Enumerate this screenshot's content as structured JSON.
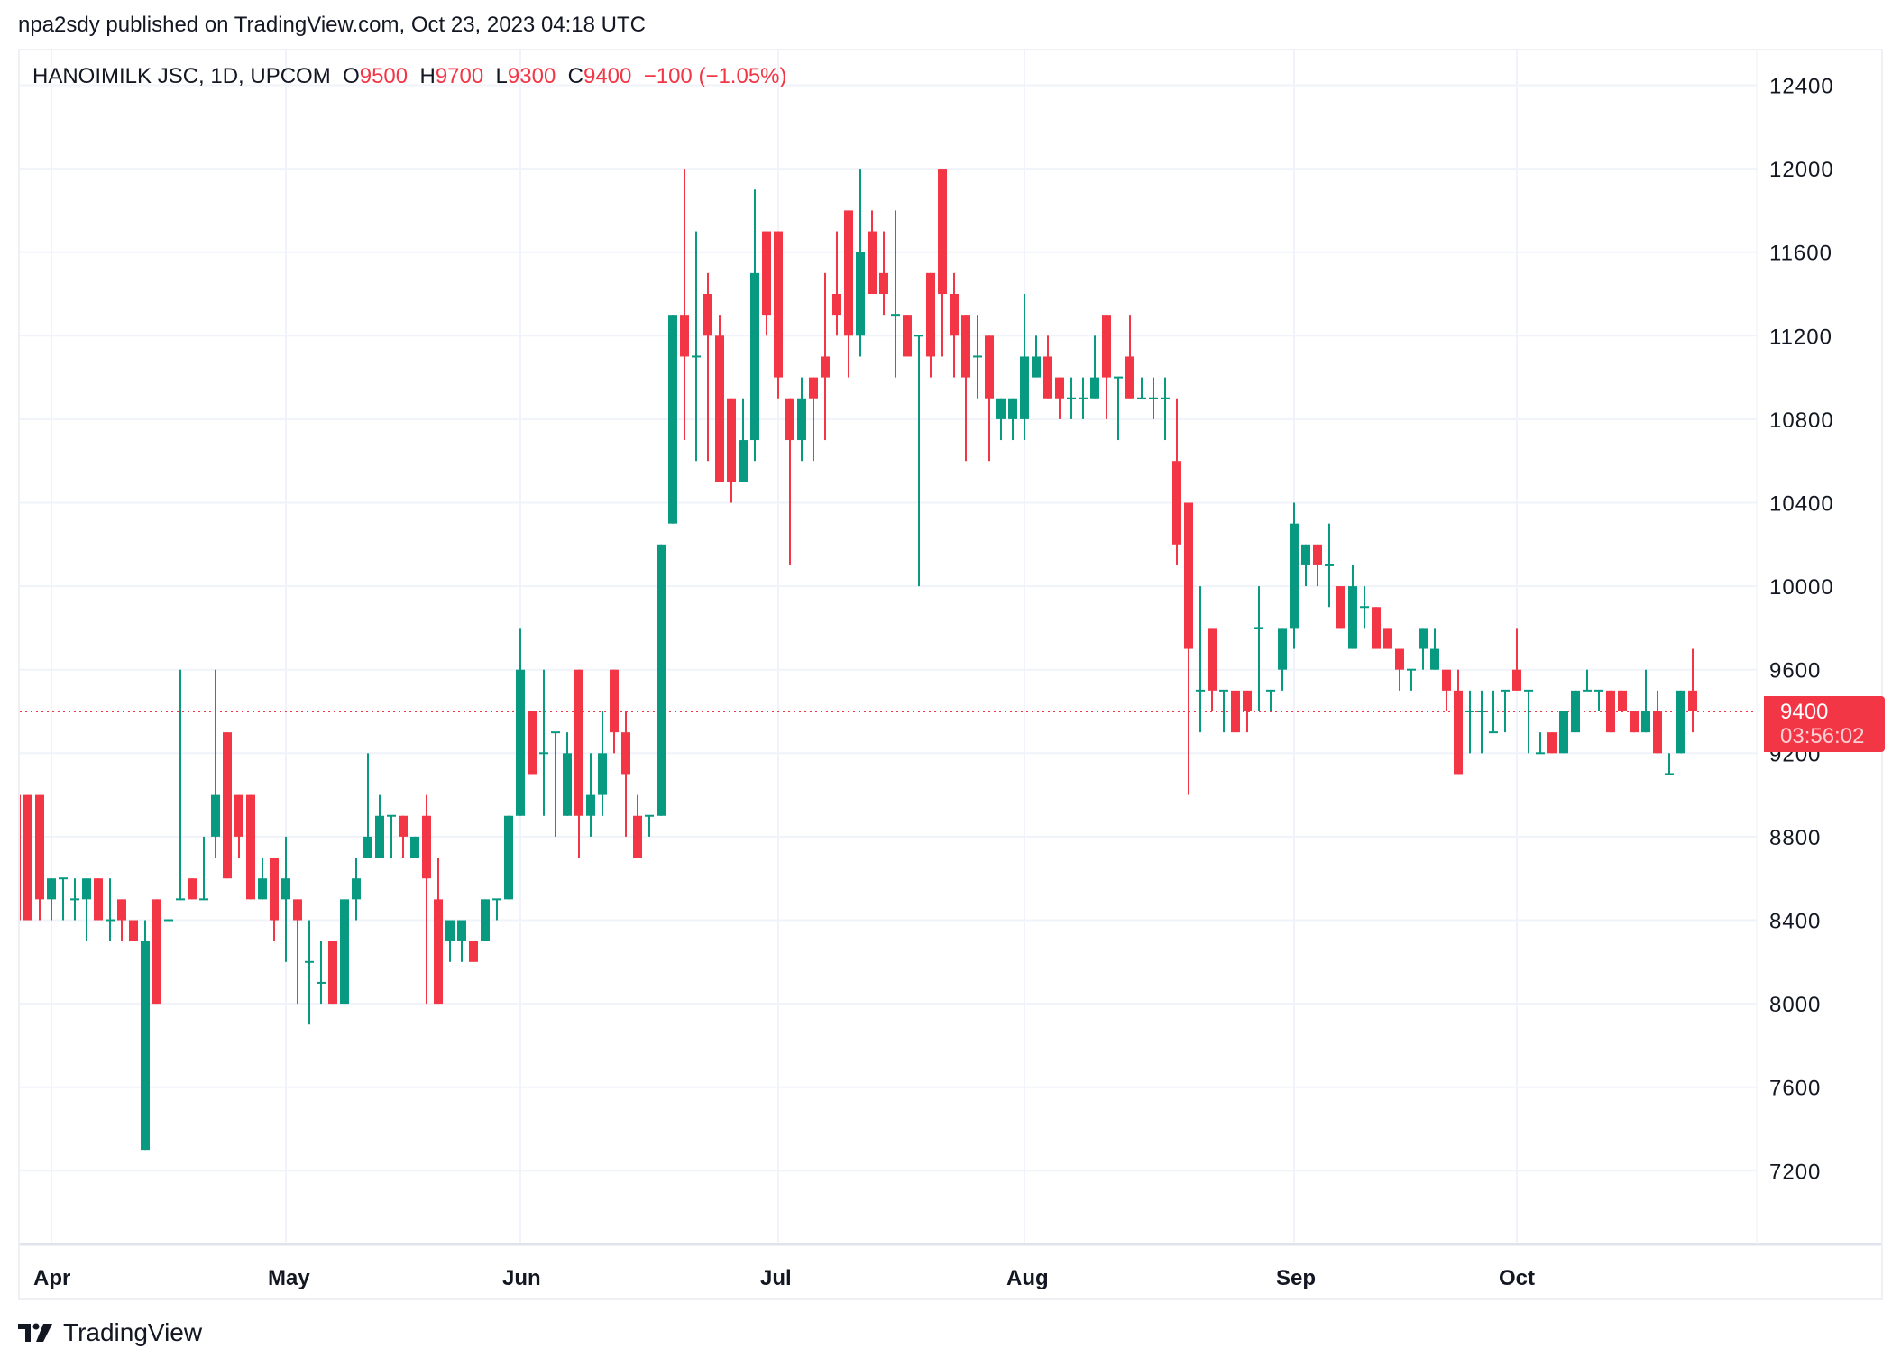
{
  "header": {
    "publish_text": "npa2sdy published on TradingView.com, Oct 23, 2023 04:18 UTC"
  },
  "legend": {
    "symbol": "HANOIMILK JSC, 1D, UPCOM",
    "o_label": "O",
    "o_value": "9500",
    "h_label": "H",
    "h_value": "9700",
    "l_label": "L",
    "l_value": "9300",
    "c_label": "C",
    "c_value": "9400",
    "change": "−100 (−1.05%)"
  },
  "price_tag": {
    "price": "9400",
    "countdown": "03:56:02"
  },
  "footer": {
    "brand": "TradingView"
  },
  "colors": {
    "up": "#089981",
    "down": "#f23645",
    "grid": "#f0f3fa",
    "text": "#131722"
  },
  "chart_data": {
    "type": "candlestick",
    "title": "HANOIMILK JSC, 1D, UPCOM",
    "xlabel": "",
    "ylabel": "",
    "ylim": [
      6850,
      12700
    ],
    "y_ticks": [
      12400,
      12000,
      11600,
      11200,
      10800,
      10400,
      10000,
      9600,
      9200,
      8800,
      8400,
      8000,
      7600,
      7200
    ],
    "x_ticks": [
      {
        "label": "Apr",
        "index": 3
      },
      {
        "label": "May",
        "index": 23
      },
      {
        "label": "Jun",
        "index": 43
      },
      {
        "label": "Jul",
        "index": 65
      },
      {
        "label": "Aug",
        "index": 86
      },
      {
        "label": "Sep",
        "index": 109
      },
      {
        "label": "Oct",
        "index": 128
      }
    ],
    "last_price": 9400,
    "grid": true,
    "legend_position": "top-left",
    "candles": [
      [
        9000,
        9000,
        8400,
        8400
      ],
      [
        9000,
        9000,
        8400,
        8400
      ],
      [
        9000,
        9000,
        8400,
        8500
      ],
      [
        8500,
        8600,
        8400,
        8600
      ],
      [
        8600,
        8600,
        8400,
        8600
      ],
      [
        8500,
        8600,
        8400,
        8500
      ],
      [
        8500,
        8600,
        8300,
        8600
      ],
      [
        8600,
        8600,
        8400,
        8400
      ],
      [
        8400,
        8600,
        8300,
        8400
      ],
      [
        8500,
        8500,
        8300,
        8400
      ],
      [
        8400,
        8400,
        8300,
        8300
      ],
      [
        7300,
        8400,
        7300,
        8300
      ],
      [
        8500,
        8500,
        8000,
        8000
      ],
      [
        8400,
        8400,
        8400,
        8400
      ],
      [
        8500,
        9600,
        8500,
        8500
      ],
      [
        8600,
        8600,
        8500,
        8500
      ],
      [
        8500,
        8800,
        8500,
        8500
      ],
      [
        8800,
        9600,
        8700,
        9000
      ],
      [
        9300,
        9300,
        8600,
        8600
      ],
      [
        9000,
        9000,
        8700,
        8800
      ],
      [
        9000,
        9000,
        8500,
        8500
      ],
      [
        8500,
        8700,
        8500,
        8600
      ],
      [
        8700,
        8700,
        8300,
        8400
      ],
      [
        8500,
        8800,
        8200,
        8600
      ],
      [
        8500,
        8500,
        8000,
        8400
      ],
      [
        8200,
        8400,
        7900,
        8200
      ],
      [
        8100,
        8300,
        8000,
        8100
      ],
      [
        8300,
        8300,
        8000,
        8000
      ],
      [
        8000,
        8500,
        8000,
        8500
      ],
      [
        8500,
        8700,
        8400,
        8600
      ],
      [
        8700,
        9200,
        8700,
        8800
      ],
      [
        8700,
        9000,
        8700,
        8900
      ],
      [
        8900,
        8900,
        8700,
        8900
      ],
      [
        8900,
        8900,
        8700,
        8800
      ],
      [
        8700,
        8800,
        8700,
        8800
      ],
      [
        8900,
        9000,
        8000,
        8600
      ],
      [
        8500,
        8700,
        8000,
        8000
      ],
      [
        8300,
        8400,
        8200,
        8400
      ],
      [
        8300,
        8400,
        8200,
        8400
      ],
      [
        8300,
        8300,
        8200,
        8200
      ],
      [
        8300,
        8500,
        8300,
        8500
      ],
      [
        8500,
        8500,
        8400,
        8500
      ],
      [
        8500,
        8900,
        8500,
        8900
      ],
      [
        8900,
        9800,
        8900,
        9600
      ],
      [
        9400,
        9400,
        9100,
        9100
      ],
      [
        9200,
        9600,
        8900,
        9200
      ],
      [
        9300,
        9300,
        8800,
        9300
      ],
      [
        8900,
        9300,
        8900,
        9200
      ],
      [
        9600,
        9600,
        8700,
        8900
      ],
      [
        8900,
        9200,
        8800,
        9000
      ],
      [
        9000,
        9400,
        8900,
        9200
      ],
      [
        9600,
        9600,
        9200,
        9300
      ],
      [
        9300,
        9400,
        8800,
        9100
      ],
      [
        8900,
        9000,
        8700,
        8700
      ],
      [
        8900,
        8900,
        8800,
        8900
      ],
      [
        8900,
        10200,
        8900,
        10200
      ],
      [
        10300,
        11300,
        10300,
        11300
      ],
      [
        11300,
        12000,
        10700,
        11100
      ],
      [
        11100,
        11700,
        10600,
        11100
      ],
      [
        11400,
        11500,
        10600,
        11200
      ],
      [
        11200,
        11300,
        10500,
        10500
      ],
      [
        10900,
        10900,
        10400,
        10500
      ],
      [
        10500,
        10900,
        10500,
        10700
      ],
      [
        10700,
        11900,
        10600,
        11500
      ],
      [
        11700,
        11700,
        11200,
        11300
      ],
      [
        11700,
        11700,
        10900,
        11000
      ],
      [
        10900,
        10900,
        10100,
        10700
      ],
      [
        10700,
        11000,
        10600,
        10900
      ],
      [
        11000,
        11000,
        10600,
        10900
      ],
      [
        11100,
        11500,
        10700,
        11000
      ],
      [
        11400,
        11700,
        11200,
        11300
      ],
      [
        11800,
        11800,
        11000,
        11200
      ],
      [
        11200,
        12000,
        11100,
        11600
      ],
      [
        11700,
        11800,
        11400,
        11400
      ],
      [
        11500,
        11700,
        11300,
        11400
      ],
      [
        11300,
        11800,
        11000,
        11300
      ],
      [
        11300,
        11300,
        11100,
        11100
      ],
      [
        11200,
        11200,
        10000,
        11200
      ],
      [
        11500,
        11500,
        11000,
        11100
      ],
      [
        12000,
        12000,
        11100,
        11400
      ],
      [
        11400,
        11500,
        11000,
        11200
      ],
      [
        11300,
        11300,
        10600,
        11000
      ],
      [
        11100,
        11300,
        10900,
        11100
      ],
      [
        11200,
        11200,
        10600,
        10900
      ],
      [
        10800,
        10900,
        10700,
        10900
      ],
      [
        10800,
        10900,
        10700,
        10900
      ],
      [
        10800,
        11400,
        10700,
        11100
      ],
      [
        11000,
        11200,
        11000,
        11100
      ],
      [
        11100,
        11200,
        10900,
        10900
      ],
      [
        11000,
        11000,
        10800,
        10900
      ],
      [
        10900,
        11000,
        10800,
        10900
      ],
      [
        10900,
        11000,
        10800,
        10900
      ],
      [
        10900,
        11200,
        10900,
        11000
      ],
      [
        11300,
        11300,
        10800,
        11000
      ],
      [
        11000,
        11000,
        10700,
        11000
      ],
      [
        11100,
        11300,
        10900,
        10900
      ],
      [
        10900,
        11000,
        10900,
        10900
      ],
      [
        10900,
        11000,
        10800,
        10900
      ],
      [
        10900,
        11000,
        10700,
        10900
      ],
      [
        10600,
        10900,
        10100,
        10200
      ],
      [
        10400,
        10400,
        9000,
        9700
      ],
      [
        9500,
        10000,
        9300,
        9500
      ],
      [
        9800,
        9800,
        9400,
        9500
      ],
      [
        9500,
        9500,
        9300,
        9500
      ],
      [
        9500,
        9500,
        9300,
        9300
      ],
      [
        9500,
        9500,
        9300,
        9400
      ],
      [
        9800,
        10000,
        9400,
        9800
      ],
      [
        9500,
        9500,
        9400,
        9500
      ],
      [
        9600,
        9800,
        9500,
        9800
      ],
      [
        9800,
        10400,
        9700,
        10300
      ],
      [
        10100,
        10200,
        10000,
        10200
      ],
      [
        10200,
        10200,
        10000,
        10100
      ],
      [
        10100,
        10300,
        9900,
        10100
      ],
      [
        10000,
        10000,
        9800,
        9800
      ],
      [
        9700,
        10100,
        9700,
        10000
      ],
      [
        9900,
        10000,
        9800,
        9900
      ],
      [
        9900,
        9900,
        9700,
        9700
      ],
      [
        9800,
        9800,
        9700,
        9700
      ],
      [
        9700,
        9700,
        9500,
        9600
      ],
      [
        9600,
        9600,
        9500,
        9600
      ],
      [
        9700,
        9800,
        9600,
        9800
      ],
      [
        9600,
        9800,
        9600,
        9700
      ],
      [
        9600,
        9600,
        9400,
        9500
      ],
      [
        9500,
        9600,
        9100,
        9100
      ],
      [
        9400,
        9500,
        9200,
        9400
      ],
      [
        9400,
        9500,
        9200,
        9400
      ],
      [
        9300,
        9500,
        9300,
        9300
      ],
      [
        9500,
        9500,
        9300,
        9500
      ],
      [
        9600,
        9800,
        9500,
        9500
      ],
      [
        9500,
        9500,
        9200,
        9500
      ],
      [
        9200,
        9300,
        9200,
        9200
      ],
      [
        9300,
        9300,
        9200,
        9200
      ],
      [
        9200,
        9400,
        9200,
        9400
      ],
      [
        9300,
        9500,
        9300,
        9500
      ],
      [
        9500,
        9600,
        9500,
        9500
      ],
      [
        9500,
        9500,
        9400,
        9500
      ],
      [
        9500,
        9500,
        9300,
        9300
      ],
      [
        9500,
        9500,
        9400,
        9400
      ],
      [
        9400,
        9400,
        9300,
        9300
      ],
      [
        9300,
        9600,
        9300,
        9400
      ],
      [
        9400,
        9500,
        9200,
        9200
      ],
      [
        9100,
        9200,
        9100,
        9100
      ],
      [
        9200,
        9500,
        9200,
        9500
      ],
      [
        9500,
        9700,
        9300,
        9400
      ]
    ],
    "candle_format": [
      "open",
      "high",
      "low",
      "close"
    ]
  }
}
